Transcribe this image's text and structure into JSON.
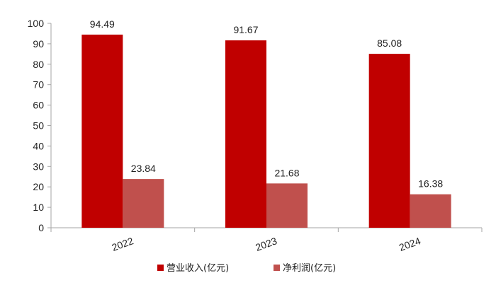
{
  "chart_data": {
    "type": "bar",
    "categories": [
      "2022",
      "2023",
      "2024"
    ],
    "series": [
      {
        "name": "营业收入(亿元)",
        "values": [
          94.49,
          91.67,
          85.08
        ],
        "color": "#c00000"
      },
      {
        "name": "净利润(亿元)",
        "values": [
          23.84,
          21.68,
          16.38
        ],
        "color": "#c0504d"
      }
    ],
    "ylim": [
      0,
      100
    ],
    "yticks": [
      0,
      10,
      20,
      30,
      40,
      50,
      60,
      70,
      80,
      90,
      100
    ],
    "legend_position": "bottom",
    "grid": false
  }
}
